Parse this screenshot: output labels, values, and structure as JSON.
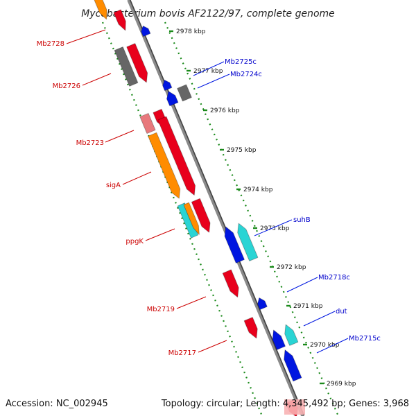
{
  "title": "Mycobacterium bovis AF2122/97, complete genome",
  "footer": {
    "accession": "Accession: NC_002945",
    "summary": "Topology: circular; Length: 4,345,492 bp; Genes: 3,968"
  },
  "colors": {
    "forward": "#e8001c",
    "reverse": "#0018e0",
    "orange": "#ff8c00",
    "cyan": "#2ad4d4",
    "gray": "#666666",
    "pink": "#e8787c",
    "backbone": "#8a8a8a",
    "dots": "#1b8a1b",
    "forward_label": "#cc0000",
    "reverse_label": "#0000cc"
  },
  "ticks": [
    {
      "label": "2978 kbp"
    },
    {
      "label": "2977 kbp"
    },
    {
      "label": "2976 kbp"
    },
    {
      "label": "2975 kbp"
    },
    {
      "label": "2974 kbp"
    },
    {
      "label": "2973 kbp"
    },
    {
      "label": "2972 kbp"
    },
    {
      "label": "2971 kbp"
    },
    {
      "label": "2970 kbp"
    },
    {
      "label": "2969 kbp"
    }
  ],
  "forward_labels": [
    "Mb2728",
    "Mb2726",
    "Mb2723",
    "sigA",
    "ppgK",
    "Mb2719",
    "Mb2717"
  ],
  "reverse_labels": [
    "Mb2725c",
    "Mb2724c",
    "suhB",
    "Mb2718c",
    "dut",
    "Mb2715c"
  ]
}
